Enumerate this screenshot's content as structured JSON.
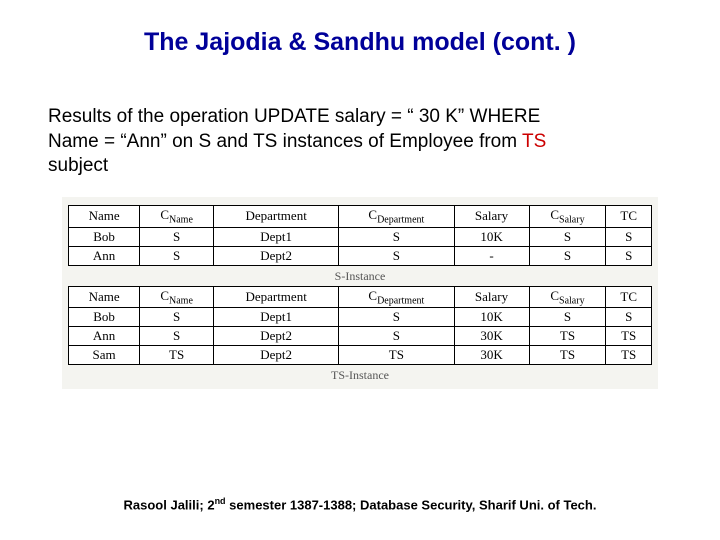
{
  "title": "The Jajodia & Sandhu model (cont. )",
  "body": {
    "line1_a": "Results of the operation UPDATE salary = “ 30 K” WHERE",
    "line2_a": "Name = “Ann” on S and TS instances of Employee from ",
    "ts": "TS",
    "line3": "subject"
  },
  "tables": {
    "headers": {
      "name": "Name",
      "cname_pre": "C",
      "cname_sub": "Name",
      "dept": "Department",
      "cdept_pre": "C",
      "cdept_sub": "Department",
      "salary": "Salary",
      "csal_pre": "C",
      "csal_sub": "Salary",
      "tc": "TC"
    },
    "s_rows": [
      {
        "name": "Bob",
        "cname": "S",
        "dept": "Dept1",
        "cdept": "S",
        "salary": "10K",
        "csal": "S",
        "tc": "S"
      },
      {
        "name": "Ann",
        "cname": "S",
        "dept": "Dept2",
        "cdept": "S",
        "salary": "-",
        "csal": "S",
        "tc": "S"
      }
    ],
    "s_caption": "S-Instance",
    "ts_rows": [
      {
        "name": "Bob",
        "cname": "S",
        "dept": "Dept1",
        "cdept": "S",
        "salary": "10K",
        "csal": "S",
        "tc": "S"
      },
      {
        "name": "Ann",
        "cname": "S",
        "dept": "Dept2",
        "cdept": "S",
        "salary": "30K",
        "csal": "TS",
        "tc": "TS"
      },
      {
        "name": "Sam",
        "cname": "TS",
        "dept": "Dept2",
        "cdept": "TS",
        "salary": "30K",
        "csal": "TS",
        "tc": "TS"
      }
    ],
    "ts_caption": "TS-Instance"
  },
  "footer": {
    "a": "Rasool Jalili; 2",
    "sup": "nd",
    "b": " semester 1387-1388; Database Security, Sharif Uni. of Tech."
  },
  "colors": {
    "title": "#000099",
    "accent": "#cc0000",
    "text": "#000000"
  }
}
